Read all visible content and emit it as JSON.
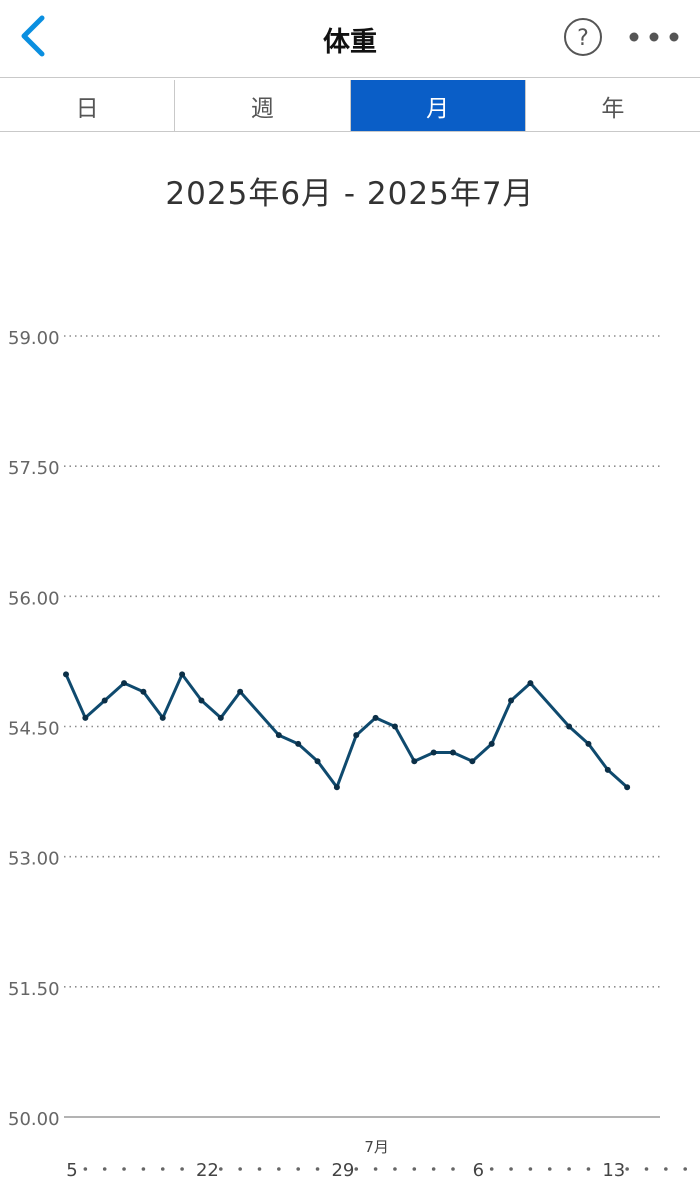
{
  "header": {
    "title": "体重",
    "back_icon": "chevron-left-icon",
    "help_icon": "question-circle-icon",
    "more_icon": "more-horizontal-icon",
    "accent_color": "#0a8fe0"
  },
  "tabs": [
    {
      "label": "日",
      "active": false
    },
    {
      "label": "週",
      "active": false
    },
    {
      "label": "月",
      "active": true
    },
    {
      "label": "年",
      "active": false
    }
  ],
  "date_range": "2025年6月 - 2025年7月",
  "chart_data": {
    "type": "line",
    "line_color": "#0f4a6e",
    "ylim": [
      50.0,
      59.0
    ],
    "y_ticks": [
      "59.00",
      "57.50",
      "56.00",
      "54.50",
      "53.00",
      "51.50",
      "50.00"
    ],
    "x_tick_labels": [
      {
        "day_index": 0,
        "label": "5"
      },
      {
        "day_index": 7,
        "label": "22"
      },
      {
        "day_index": 14,
        "label": "29"
      },
      {
        "day_index": 21,
        "label": "6"
      },
      {
        "day_index": 28,
        "label": "13"
      }
    ],
    "x_month_label": {
      "day_index": 16,
      "label": "7月"
    },
    "x_dot_days": 32,
    "points": [
      {
        "x": 0,
        "y": 55.1
      },
      {
        "x": 1,
        "y": 54.6
      },
      {
        "x": 2,
        "y": 54.8
      },
      {
        "x": 3,
        "y": 55.0
      },
      {
        "x": 4,
        "y": 54.9
      },
      {
        "x": 5,
        "y": 54.6
      },
      {
        "x": 6,
        "y": 55.1
      },
      {
        "x": 7,
        "y": 54.8
      },
      {
        "x": 8,
        "y": 54.6
      },
      {
        "x": 9,
        "y": 54.9
      },
      {
        "x": 11,
        "y": 54.4
      },
      {
        "x": 12,
        "y": 54.3
      },
      {
        "x": 13,
        "y": 54.1
      },
      {
        "x": 14,
        "y": 53.8
      },
      {
        "x": 15,
        "y": 54.4
      },
      {
        "x": 16,
        "y": 54.6
      },
      {
        "x": 17,
        "y": 54.5
      },
      {
        "x": 18,
        "y": 54.1
      },
      {
        "x": 19,
        "y": 54.2
      },
      {
        "x": 20,
        "y": 54.2
      },
      {
        "x": 21,
        "y": 54.1
      },
      {
        "x": 22,
        "y": 54.3
      },
      {
        "x": 23,
        "y": 54.8
      },
      {
        "x": 24,
        "y": 55.0
      },
      {
        "x": 26,
        "y": 54.5
      },
      {
        "x": 27,
        "y": 54.3
      },
      {
        "x": 28,
        "y": 54.0
      },
      {
        "x": 29,
        "y": 53.8
      }
    ]
  }
}
